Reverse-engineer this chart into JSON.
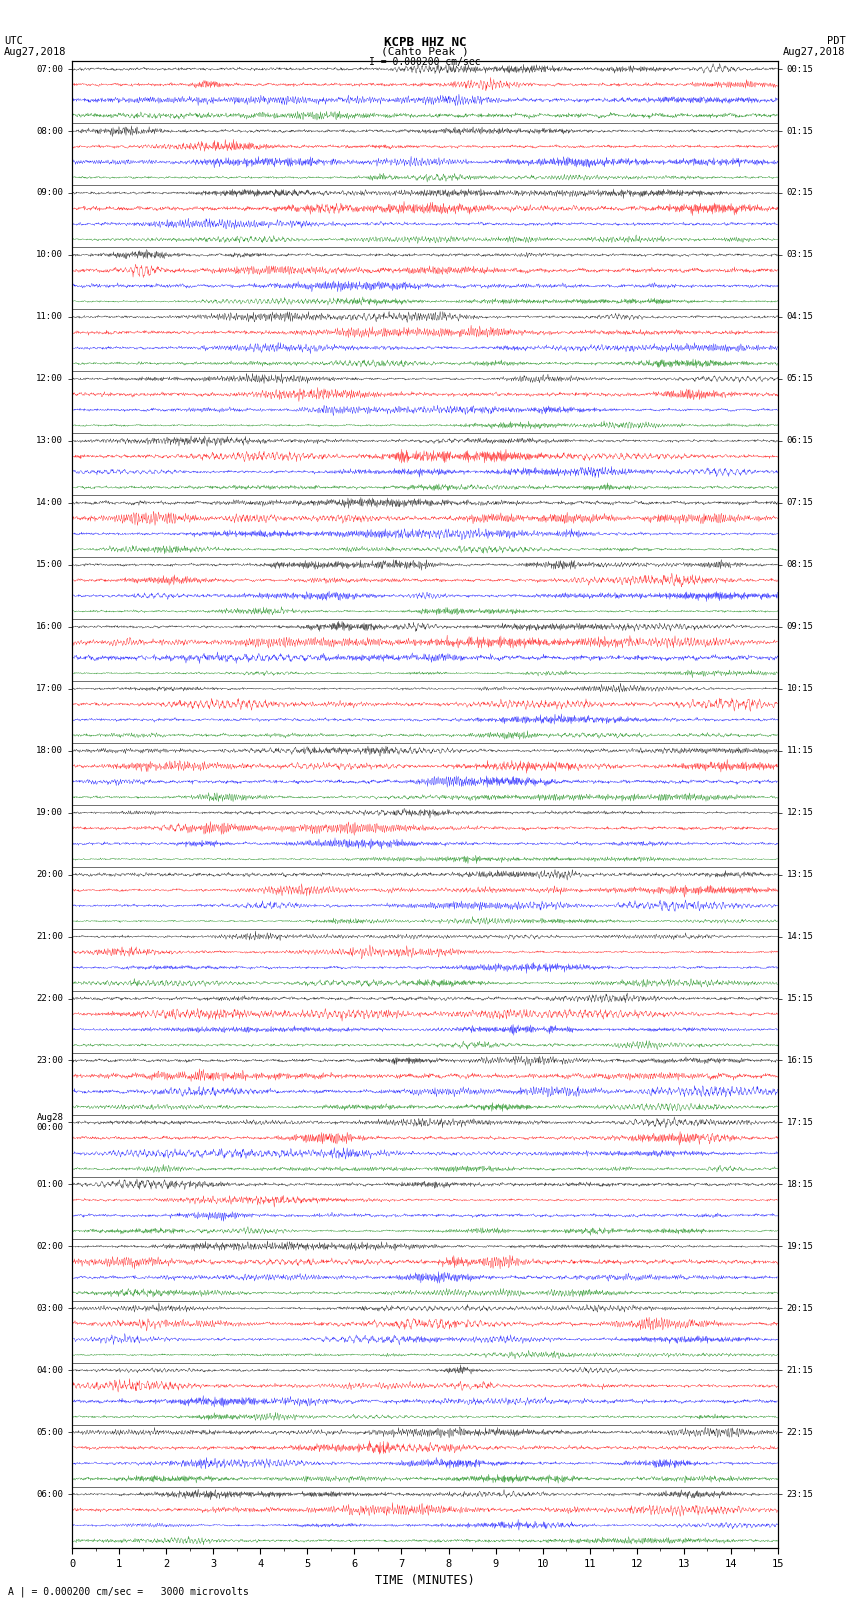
{
  "title_center": "KCPB HHZ NC",
  "title_sub": "(Cahto Peak )",
  "title_left": "UTC\nAug27,2018",
  "title_right": "PDT\nAug27,2018",
  "scale_label": "I = 0.000200 cm/sec",
  "bottom_label": "A | = 0.000200 cm/sec =   3000 microvolts",
  "xlabel": "TIME (MINUTES)",
  "colors": [
    "black",
    "red",
    "blue",
    "green"
  ],
  "left_times": [
    "07:00",
    "08:00",
    "09:00",
    "10:00",
    "11:00",
    "12:00",
    "13:00",
    "14:00",
    "15:00",
    "16:00",
    "17:00",
    "18:00",
    "19:00",
    "20:00",
    "21:00",
    "22:00",
    "23:00",
    "Aug28\n00:00",
    "01:00",
    "02:00",
    "03:00",
    "04:00",
    "05:00",
    "06:00"
  ],
  "right_times": [
    "00:15",
    "01:15",
    "02:15",
    "03:15",
    "04:15",
    "05:15",
    "06:15",
    "07:15",
    "08:15",
    "09:15",
    "10:15",
    "11:15",
    "12:15",
    "13:15",
    "14:15",
    "15:15",
    "16:15",
    "17:15",
    "18:15",
    "19:15",
    "20:15",
    "21:15",
    "22:15",
    "23:15"
  ],
  "n_hour_groups": 24,
  "n_cols": 4,
  "minutes": 15,
  "figsize": [
    8.5,
    16.13
  ],
  "dpi": 100,
  "bg_color": "white",
  "seed": 42
}
